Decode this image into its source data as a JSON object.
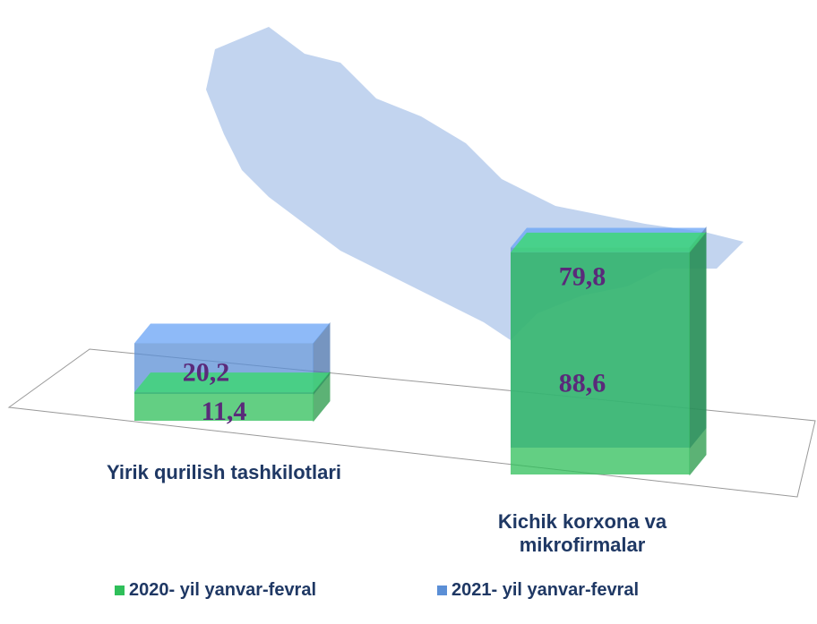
{
  "chart_data": {
    "type": "bar3d",
    "categories": [
      "Yirik qurilish tashkilotlari",
      "Kichik korxona va mikrofirmalar"
    ],
    "series": [
      {
        "name": "2020- yil yanvar-fevral",
        "color": "#2fbf5a",
        "values": [
          11.4,
          88.6
        ],
        "value_labels": [
          "11,4",
          "88,6"
        ]
      },
      {
        "name": "2021- yil yanvar-fevral",
        "color": "#5b8fd6",
        "values": [
          20.2,
          79.8
        ],
        "value_labels": [
          "20,2",
          "79,8"
        ]
      }
    ],
    "legend": "bottom"
  }
}
